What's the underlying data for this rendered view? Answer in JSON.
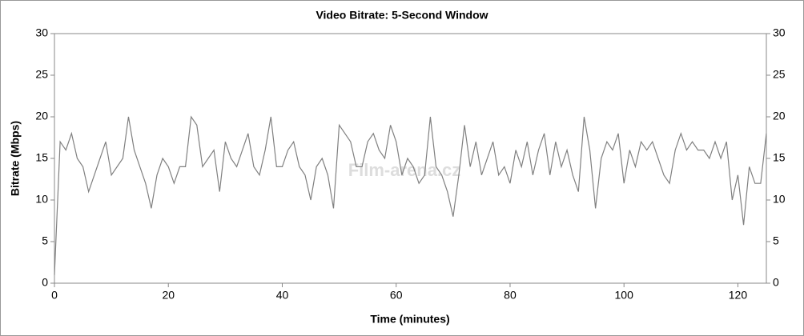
{
  "chart_data": {
    "type": "line",
    "title": "Video Bitrate: 5-Second Window",
    "xlabel": "Time (minutes)",
    "ylabel": "Bitrate (Mbps)",
    "watermark": "Film-arena.cz",
    "x": [
      0,
      1,
      2,
      3,
      4,
      5,
      6,
      7,
      8,
      9,
      10,
      11,
      12,
      13,
      14,
      15,
      16,
      17,
      18,
      19,
      20,
      21,
      22,
      23,
      24,
      25,
      26,
      27,
      28,
      29,
      30,
      31,
      32,
      33,
      34,
      35,
      36,
      37,
      38,
      39,
      40,
      41,
      42,
      43,
      44,
      45,
      46,
      47,
      48,
      49,
      50,
      51,
      52,
      53,
      54,
      55,
      56,
      57,
      58,
      59,
      60,
      61,
      62,
      63,
      64,
      65,
      66,
      67,
      68,
      69,
      70,
      71,
      72,
      73,
      74,
      75,
      76,
      77,
      78,
      79,
      80,
      81,
      82,
      83,
      84,
      85,
      86,
      87,
      88,
      89,
      90,
      91,
      92,
      93,
      94,
      95,
      96,
      97,
      98,
      99,
      100,
      101,
      102,
      103,
      104,
      105,
      106,
      107,
      108,
      109,
      110,
      111,
      112,
      113,
      114,
      115,
      116,
      117,
      118,
      119,
      120,
      121,
      122,
      123,
      124,
      125
    ],
    "series": [
      {
        "name": "Video Bitrate",
        "color": "#808080",
        "values": [
          1,
          17,
          16,
          18,
          15,
          14,
          11,
          13,
          15,
          17,
          13,
          14,
          15,
          20,
          16,
          14,
          12,
          9,
          13,
          15,
          14,
          12,
          14,
          14,
          20,
          19,
          14,
          15,
          16,
          11,
          17,
          15,
          14,
          16,
          18,
          14,
          13,
          16,
          20,
          14,
          14,
          16,
          17,
          14,
          13,
          10,
          14,
          15,
          13,
          9,
          19,
          18,
          17,
          14,
          14,
          17,
          18,
          16,
          15,
          19,
          17,
          13,
          15,
          14,
          12,
          13,
          20,
          14,
          13,
          11,
          8,
          13,
          19,
          14,
          17,
          13,
          15,
          17,
          13,
          14,
          12,
          16,
          14,
          17,
          13,
          16,
          18,
          13,
          17,
          14,
          16,
          13,
          11,
          20,
          16,
          9,
          15,
          17,
          16,
          18,
          12,
          16,
          14,
          17,
          16,
          17,
          15,
          13,
          12,
          16,
          18,
          16,
          17,
          16,
          16,
          15,
          17,
          15,
          17,
          10,
          13,
          7,
          14,
          12,
          12,
          18
        ]
      }
    ],
    "xlim": [
      0,
      125
    ],
    "xticks": [
      0,
      20,
      40,
      60,
      80,
      100,
      120
    ],
    "ylim": [
      0,
      30
    ],
    "yticks": [
      0,
      5,
      10,
      15,
      20,
      25,
      30
    ],
    "y2lim": [
      0,
      30
    ],
    "y2ticks": [
      0,
      5,
      10,
      15,
      20,
      25,
      30
    ]
  }
}
